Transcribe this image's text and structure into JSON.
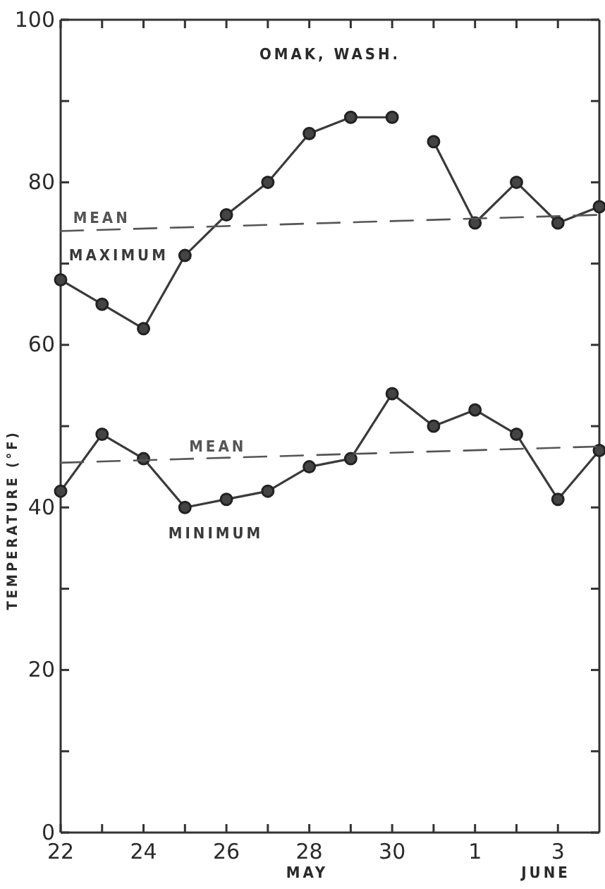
{
  "chart_data": {
    "type": "line",
    "title": "OMAK, WASH.",
    "ylabel": "TEMPERATURE (°F)",
    "xlabel": "MAY",
    "annotations": [
      "JUNE"
    ],
    "xlim": [
      "--05-22",
      "--06-04"
    ],
    "ylim": [
      0,
      100
    ],
    "xticks": [
      {
        "value": "--05-22",
        "label": "22"
      },
      {
        "value": "--05-23",
        "label": null
      },
      {
        "value": "--05-24",
        "label": "24"
      },
      {
        "value": "--05-25",
        "label": null
      },
      {
        "value": "--05-26",
        "label": "26"
      },
      {
        "value": "--05-27",
        "label": null
      },
      {
        "value": "--05-28",
        "label": "28"
      },
      {
        "value": "--05-29",
        "label": null
      },
      {
        "value": "--05-30",
        "label": "30"
      },
      {
        "value": "--05-31",
        "label": null
      },
      {
        "value": "--06-01",
        "label": "1"
      },
      {
        "value": "--06-02",
        "label": null
      },
      {
        "value": "--06-03",
        "label": "3"
      }
    ],
    "yticks": [
      0,
      {
        "value": 10,
        "label": null
      },
      20,
      {
        "value": 30,
        "label": null
      },
      40,
      {
        "value": 50,
        "label": null
      },
      60,
      {
        "value": 70,
        "label": null
      },
      80,
      {
        "value": 90,
        "label": null
      },
      100
    ],
    "grid": false,
    "series": [
      {
        "name": "MAXIMUM",
        "color": "#3a3a3a",
        "marker": "circle",
        "line_style": "solid",
        "x": [
          "--05-22",
          "--05-23",
          "--05-24",
          "--05-25",
          "--05-26",
          "--05-27",
          "--05-28",
          "--05-29",
          "--05-30"
        ],
        "values": [
          68,
          65,
          62,
          71,
          76,
          80,
          86,
          88,
          88
        ]
      },
      {
        "color": "#3a3a3a",
        "marker": "circle",
        "line_style": "solid",
        "x": [
          "--05-31",
          "--06-01",
          "--06-02",
          "--06-03",
          "--06-04"
        ],
        "values": [
          85,
          75,
          80,
          75,
          77
        ]
      },
      {
        "name": "MEAN",
        "color": "#555555",
        "marker": "none",
        "line_style": "dashed",
        "x": [
          "--05-22",
          "--06-04"
        ],
        "values": [
          74,
          76
        ]
      },
      {
        "name": "MINIMUM",
        "color": "#3a3a3a",
        "marker": "circle",
        "line_style": "solid",
        "x": [
          "--05-22",
          "--05-23",
          "--05-24",
          "--05-25",
          "--05-26",
          "--05-27",
          "--05-28",
          "--05-29",
          "--05-30",
          "--05-31",
          "--06-01",
          "--06-02",
          "--06-03",
          "--06-04"
        ],
        "values": [
          42,
          49,
          46,
          40,
          41,
          42,
          45,
          46,
          54,
          50,
          52,
          49,
          41,
          47
        ]
      },
      {
        "name": "MEAN",
        "color": "#555555",
        "marker": "none",
        "line_style": "dashed",
        "x": [
          "--05-22",
          "--06-04"
        ],
        "values": [
          45.5,
          47.5
        ]
      }
    ]
  }
}
